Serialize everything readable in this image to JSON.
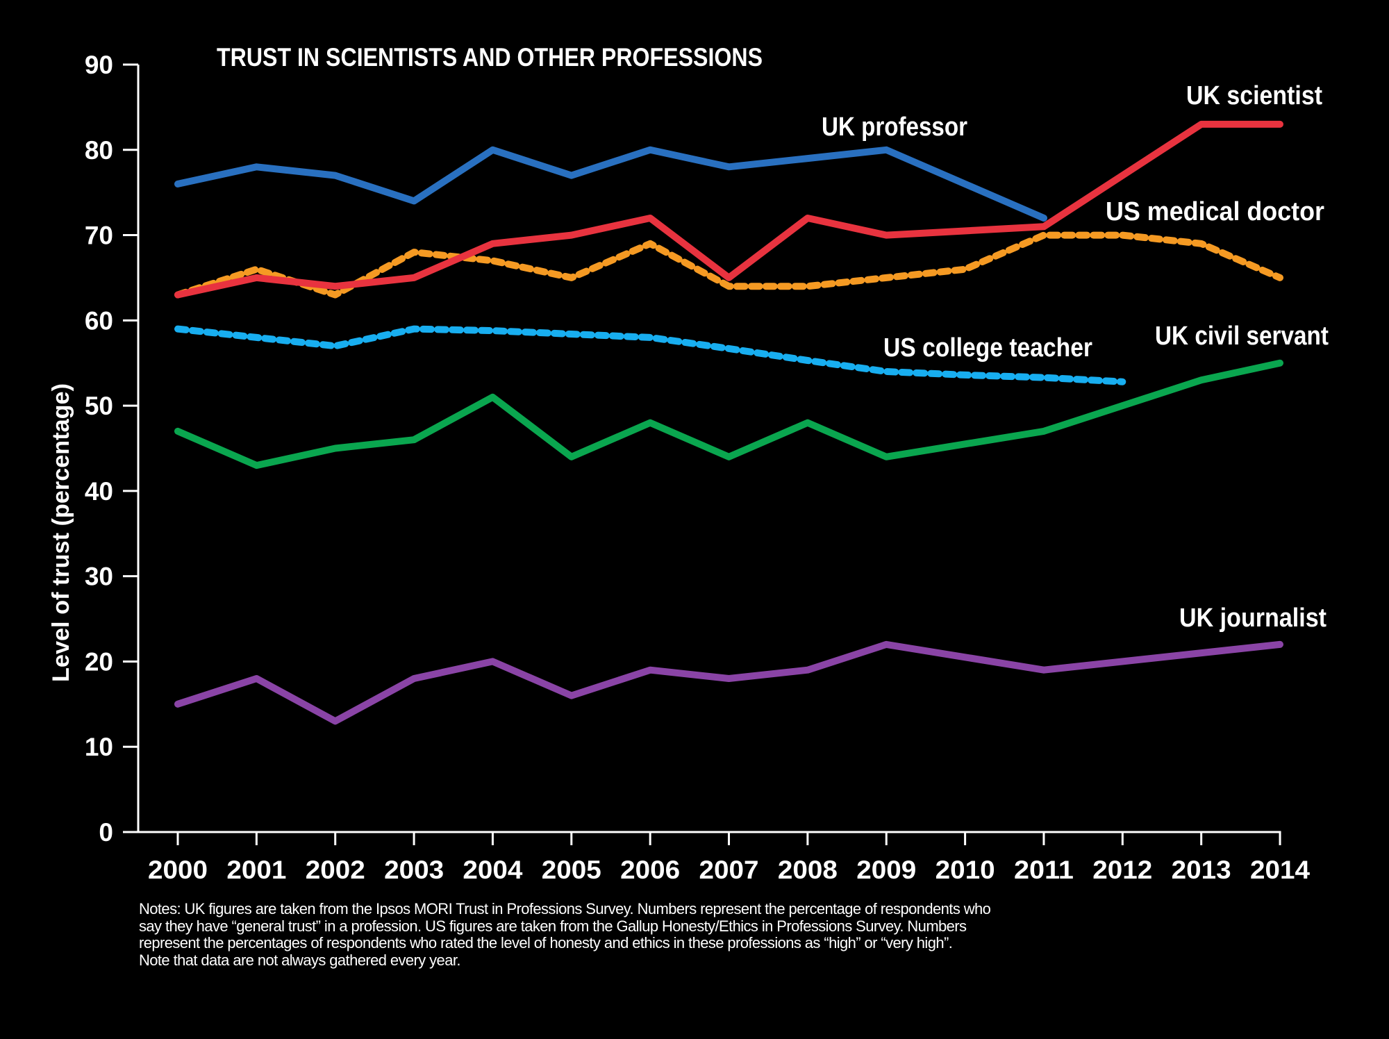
{
  "chart_data": {
    "type": "line",
    "title": "TRUST IN SCIENTISTS AND OTHER PROFESSIONS",
    "xlabel": "",
    "ylabel": "Level of trust (percentage)",
    "x": [
      2000,
      2001,
      2002,
      2003,
      2004,
      2005,
      2006,
      2007,
      2008,
      2009,
      2010,
      2011,
      2012,
      2013,
      2014
    ],
    "x_tick_labels": [
      "2000",
      "2001",
      "2002",
      "2003",
      "2004",
      "2005",
      "2006",
      "2007",
      "2008",
      "2009",
      "2010",
      "2011",
      "2012",
      "2013",
      "2014"
    ],
    "ylim": [
      0,
      90
    ],
    "y_ticks": [
      0,
      10,
      20,
      30,
      40,
      50,
      60,
      70,
      80,
      90
    ],
    "y_tick_labels": [
      "0",
      "10",
      "20",
      "30",
      "40",
      "50",
      "60",
      "70",
      "80",
      "90"
    ],
    "grid": false,
    "legend": "inline labels at line ends",
    "series": [
      {
        "name": "UK professor",
        "color": "#2970c0",
        "style": "solid",
        "values": [
          76,
          78,
          77,
          74,
          80,
          77,
          80,
          78,
          79,
          80,
          null,
          72,
          null,
          null,
          null
        ]
      },
      {
        "name": "UK scientist",
        "color": "#e8333f",
        "style": "solid",
        "values": [
          63,
          65,
          64,
          65,
          69,
          70,
          72,
          65,
          72,
          70,
          null,
          71,
          null,
          83,
          83
        ]
      },
      {
        "name": "US medical doctor",
        "color": "#f59a23",
        "style": "dashed",
        "values": [
          63,
          66,
          63,
          68,
          67,
          65,
          69,
          64,
          64,
          65,
          66,
          70,
          70,
          69,
          65
        ]
      },
      {
        "name": "US college teacher",
        "color": "#18aef0",
        "style": "dashed",
        "values": [
          59,
          58,
          57,
          59,
          58.8,
          58.4,
          58,
          56.7,
          55.3,
          54,
          53.6,
          53.3,
          52.8,
          null,
          null
        ]
      },
      {
        "name": "UK civil servant",
        "color": "#0aa64f",
        "style": "solid",
        "values": [
          47,
          43,
          45,
          46,
          51,
          44,
          48,
          44,
          48,
          44,
          null,
          47,
          null,
          53,
          55
        ]
      },
      {
        "name": "UK journalist",
        "color": "#8a44a6",
        "style": "solid",
        "values": [
          15,
          18,
          13,
          18,
          20,
          16,
          19,
          18,
          19,
          22,
          null,
          19,
          null,
          null,
          22
        ]
      }
    ]
  },
  "notes": [
    "Notes: UK figures are taken from the Ipsos MORI Trust in Professions Survey. Numbers represent the percentage of respondents who",
    "say they have “general trust” in a profession. US figures are taken from the Gallup Honesty/Ethics in Professions Survey. Numbers",
    "represent the percentages of respondents who rated the level of honesty and ethics in these professions as “high” or “very high”.",
    "Note that data are not always gathered every year."
  ]
}
